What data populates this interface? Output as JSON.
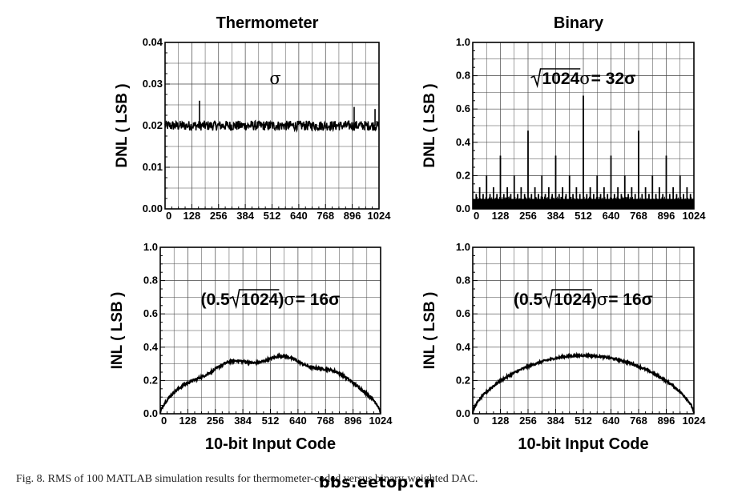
{
  "caption": "Fig. 8.   RMS of 100 MATLAB simulation results for thermometer-coded versus binary-weighted DAC.",
  "watermark": "bbs.eetop.cn",
  "chart_data": [
    {
      "type": "line",
      "title": "Thermometer",
      "xlabel": "",
      "ylabel": "DNL ( LSB )",
      "xlim": [
        0,
        1024
      ],
      "ylim": [
        0,
        0.04
      ],
      "x_ticks": [
        "0",
        "128",
        "256",
        "384",
        "512",
        "640",
        "768",
        "896",
        "1024"
      ],
      "y_ticks": [
        "0.00",
        "0.01",
        "0.02",
        "0.03",
        "0.04"
      ],
      "grid": true,
      "annotation": {
        "pre": "",
        "radicand": "",
        "post": "",
        "sigma": "σ",
        "rhs": ""
      },
      "series": [
        {
          "shape": "noise",
          "baseline": 0.02,
          "noise_amplitude": 0.0012,
          "spikes": [
            {
              "x": 165,
              "y": 0.026
            },
            {
              "x": 905,
              "y": 0.0245
            },
            {
              "x": 1005,
              "y": 0.024
            }
          ]
        }
      ]
    },
    {
      "type": "line",
      "title": "Binary",
      "xlabel": "",
      "ylabel": "DNL ( LSB )",
      "xlim": [
        0,
        1024
      ],
      "ylim": [
        0,
        1.0
      ],
      "x_ticks": [
        "0",
        "128",
        "256",
        "384",
        "512",
        "640",
        "768",
        "896",
        "1024"
      ],
      "y_ticks": [
        "0.0",
        "0.2",
        "0.4",
        "0.6",
        "0.8",
        "1.0"
      ],
      "grid": true,
      "annotation": {
        "pre": "",
        "radicand": "1024",
        "post": "",
        "sigma": "σ",
        "rhs": " = 32σ"
      },
      "series": [
        {
          "shape": "binary_spikes",
          "floor": 0.06,
          "spikes": [
            {
              "period": 32,
              "y": 0.13
            },
            {
              "period": 64,
              "y": 0.2
            },
            {
              "period": 128,
              "y": 0.32
            },
            {
              "period": 256,
              "y": 0.47
            },
            {
              "period": 512,
              "y": 0.68
            }
          ]
        }
      ]
    },
    {
      "type": "line",
      "title": "",
      "xlabel": "10-bit Input Code",
      "ylabel": "INL ( LSB )",
      "xlim": [
        0,
        1024
      ],
      "ylim": [
        0,
        1.0
      ],
      "x_ticks": [
        "0",
        "128",
        "256",
        "384",
        "512",
        "640",
        "768",
        "896",
        "1024"
      ],
      "y_ticks": [
        "0.0",
        "0.2",
        "0.4",
        "0.6",
        "0.8",
        "1.0"
      ],
      "grid": true,
      "annotation": {
        "pre": "(0.5",
        "radicand": "1024",
        "post": ")",
        "sigma": "σ",
        "rhs": " = 16σ"
      },
      "series": [
        {
          "shape": "arc",
          "peak": 0.33,
          "wobble": 0.02,
          "noise_amplitude": 0.007
        }
      ]
    },
    {
      "type": "line",
      "title": "",
      "xlabel": "10-bit Input Code",
      "ylabel": "INL ( LSB )",
      "xlim": [
        0,
        1024
      ],
      "ylim": [
        0,
        1.0
      ],
      "x_ticks": [
        "0",
        "128",
        "256",
        "384",
        "512",
        "640",
        "768",
        "896",
        "1024"
      ],
      "y_ticks": [
        "0.0",
        "0.2",
        "0.4",
        "0.6",
        "0.8",
        "1.0"
      ],
      "grid": true,
      "annotation": {
        "pre": "(0.5",
        "radicand": "1024",
        "post": ")",
        "sigma": "σ",
        "rhs": " = 16σ"
      },
      "series": [
        {
          "shape": "arc",
          "peak": 0.35,
          "wobble": 0.0,
          "noise_amplitude": 0.006
        }
      ]
    }
  ]
}
